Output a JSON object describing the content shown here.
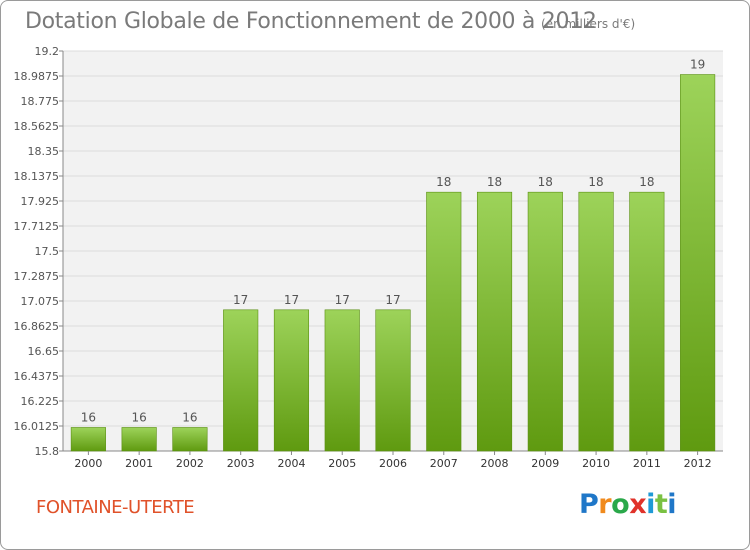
{
  "header": {
    "title": "Dotation Globale de Fonctionnement de 2000 à 2012",
    "unit_note": "(en milliers d'€)"
  },
  "footer": {
    "commune": "FONTAINE-UTERTE",
    "logo_letters": [
      "P",
      "r",
      "o",
      "x",
      "i",
      "t",
      "i"
    ],
    "logo_colors": [
      "#1f77c8",
      "#f08a1c",
      "#2aa84a",
      "#e0322a",
      "#1f9ad6",
      "#7ac143",
      "#1f77c8"
    ]
  },
  "colors": {
    "bar_top": "#9dd35a",
    "bar_bottom": "#5f9a10",
    "grid": "#dcdcdc",
    "plot_bg": "#f2f2f2",
    "title": "#7a7a7a",
    "commune": "#e0522a"
  },
  "chart_data": {
    "type": "bar",
    "title": "Dotation Globale de Fonctionnement de 2000 à 2012",
    "xlabel": "",
    "ylabel": "",
    "categories": [
      "2000",
      "2001",
      "2002",
      "2003",
      "2004",
      "2005",
      "2006",
      "2007",
      "2008",
      "2009",
      "2010",
      "2011",
      "2012"
    ],
    "values": [
      16,
      16,
      16,
      17,
      17,
      17,
      17,
      18,
      18,
      18,
      18,
      18,
      19
    ],
    "data_labels": [
      "16",
      "16",
      "16",
      "17",
      "17",
      "17",
      "17",
      "18",
      "18",
      "18",
      "18",
      "18",
      "19"
    ],
    "ylim": [
      15.8,
      19.2
    ],
    "yticks": [
      15.8,
      16.0125,
      16.225,
      16.4375,
      16.65,
      16.8625,
      17.075,
      17.2875,
      17.5,
      17.7125,
      17.925,
      18.1375,
      18.35,
      18.5625,
      18.775,
      18.9875,
      19.2
    ],
    "ytick_labels": [
      "15.8",
      "16.0125",
      "16.225",
      "16.4375",
      "16.65",
      "16.8625",
      "17.075",
      "17.2875",
      "17.5",
      "17.7125",
      "17.925",
      "18.1375",
      "18.35",
      "18.5625",
      "18.775",
      "18.9875",
      "19.2"
    ],
    "grid": true,
    "legend": "none"
  }
}
